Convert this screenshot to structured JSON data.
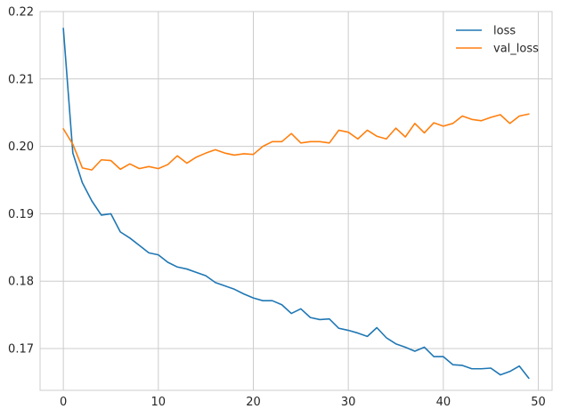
{
  "chart_data": {
    "type": "line",
    "title": "",
    "xlabel": "",
    "ylabel": "",
    "xlim": [
      -2.45,
      51.45
    ],
    "ylim": [
      0.1638,
      0.22
    ],
    "x_ticks": [
      0,
      10,
      20,
      30,
      40,
      50
    ],
    "y_ticks": [
      0.17,
      0.18,
      0.19,
      0.2,
      0.21,
      0.22
    ],
    "grid": true,
    "legend_position": "top-right",
    "x": [
      0,
      1,
      2,
      3,
      4,
      5,
      6,
      7,
      8,
      9,
      10,
      11,
      12,
      13,
      14,
      15,
      16,
      17,
      18,
      19,
      20,
      21,
      22,
      23,
      24,
      25,
      26,
      27,
      28,
      29,
      30,
      31,
      32,
      33,
      34,
      35,
      36,
      37,
      38,
      39,
      40,
      41,
      42,
      43,
      44,
      45,
      46,
      47,
      48,
      49
    ],
    "series": [
      {
        "name": "loss",
        "color": "#1f77b4",
        "values": [
          0.2175,
          0.199,
          0.1946,
          0.1919,
          0.1898,
          0.19,
          0.1873,
          0.1864,
          0.1853,
          0.1842,
          0.1839,
          0.1828,
          0.1821,
          0.1818,
          0.1813,
          0.1808,
          0.1798,
          0.1793,
          0.1788,
          0.1781,
          0.1775,
          0.1771,
          0.1771,
          0.1765,
          0.1752,
          0.1759,
          0.1746,
          0.1743,
          0.1744,
          0.173,
          0.1727,
          0.1723,
          0.1718,
          0.1731,
          0.1716,
          0.1707,
          0.1702,
          0.1696,
          0.1702,
          0.1688,
          0.1688,
          0.1676,
          0.1675,
          0.167,
          0.167,
          0.1671,
          0.1661,
          0.1666,
          0.1674,
          0.1656
        ]
      },
      {
        "name": "val_loss",
        "color": "#ff7f0e",
        "values": [
          0.2026,
          0.2003,
          0.1968,
          0.1965,
          0.198,
          0.1979,
          0.1966,
          0.1974,
          0.1967,
          0.197,
          0.1967,
          0.1973,
          0.1986,
          0.1975,
          0.1984,
          0.199,
          0.1995,
          0.199,
          0.1987,
          0.1989,
          0.1988,
          0.2,
          0.2007,
          0.2007,
          0.2019,
          0.2005,
          0.2007,
          0.2007,
          0.2005,
          0.2024,
          0.2021,
          0.2011,
          0.2024,
          0.2015,
          0.2011,
          0.2027,
          0.2014,
          0.2034,
          0.202,
          0.2035,
          0.203,
          0.2034,
          0.2045,
          0.204,
          0.2038,
          0.2043,
          0.2047,
          0.2034,
          0.2045,
          0.2048
        ]
      }
    ]
  }
}
